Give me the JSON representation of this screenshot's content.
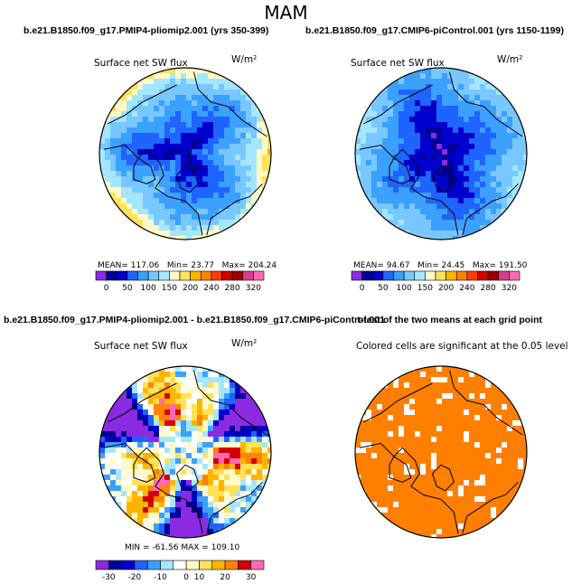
{
  "figure": {
    "title": "MAM"
  },
  "chart_data": [
    {
      "type": "heatmap",
      "projection": "north-polar-stereographic",
      "title": "b.e21.B1850.f09_g17.PMIP4-pliomip2.001 (yrs 350-399)",
      "subtitle": "Surface net SW flux",
      "units": "W/m²",
      "stats": {
        "mean_label": "MEAN=",
        "mean": "117.06",
        "min_label": "Min=",
        "min": "23.77",
        "max_label": "Max=",
        "max": "204.24"
      },
      "colorbar": {
        "levels": [
          "0",
          "50",
          "100",
          "150",
          "200",
          "240",
          "280",
          "320"
        ],
        "colors": [
          "#8a2be2",
          "#000096",
          "#0000cd",
          "#1e64ff",
          "#3ca0ff",
          "#78c8ff",
          "#a5e6ff",
          "#fffac8",
          "#ffe15a",
          "#ffb400",
          "#ff8200",
          "#ff3c00",
          "#d20000",
          "#a00000",
          "#dc3c8c",
          "#ff69b4"
        ]
      }
    },
    {
      "type": "heatmap",
      "projection": "north-polar-stereographic",
      "title": "b.e21.B1850.f09_g17.CMIP6-piControl.001 (yrs 1150-1199)",
      "subtitle": "Surface net SW flux",
      "units": "W/m²",
      "stats": {
        "mean_label": "MEAN=",
        "mean": "94.67",
        "min_label": "Min=",
        "min": "24.45",
        "max_label": "Max=",
        "max": "191.50"
      },
      "colorbar": {
        "levels": [
          "0",
          "50",
          "100",
          "150",
          "200",
          "240",
          "280",
          "320"
        ],
        "colors": [
          "#8a2be2",
          "#000096",
          "#0000cd",
          "#1e64ff",
          "#3ca0ff",
          "#78c8ff",
          "#a5e6ff",
          "#fffac8",
          "#ffe15a",
          "#ffb400",
          "#ff8200",
          "#ff3c00",
          "#d20000",
          "#a00000",
          "#dc3c8c",
          "#ff69b4"
        ]
      }
    },
    {
      "type": "heatmap",
      "projection": "north-polar-stereographic",
      "title": "b.e21.B1850.f09_g17.PMIP4-pliomip2.001 - b.e21.B1850.f09_g17.CMIP6-piControl.001",
      "subtitle": "Surface net SW flux",
      "units": "W/m²",
      "stats": {
        "min_label": "MIN =",
        "min": "-61.56",
        "max_label": "MAX =",
        "max": "109.10"
      },
      "colorbar": {
        "levels": [
          "-30",
          "-20",
          "-10",
          "0",
          "10",
          "20",
          "30"
        ],
        "colors": [
          "#8a2be2",
          "#000096",
          "#0000cd",
          "#1e64ff",
          "#3ca0ff",
          "#a5e6ff",
          "#ffffff",
          "#fffac8",
          "#ffe15a",
          "#ffb400",
          "#ff8200",
          "#d20000",
          "#ff69b4"
        ]
      }
    },
    {
      "type": "heatmap",
      "projection": "north-polar-stereographic",
      "title": "t-test of the two means at each grid point",
      "subtitle": "Colored cells are significant at the 0.05 level",
      "significant_fraction": 0.88,
      "colors": {
        "significant": "#ff7f00",
        "not_significant": "#ffffff"
      }
    }
  ]
}
